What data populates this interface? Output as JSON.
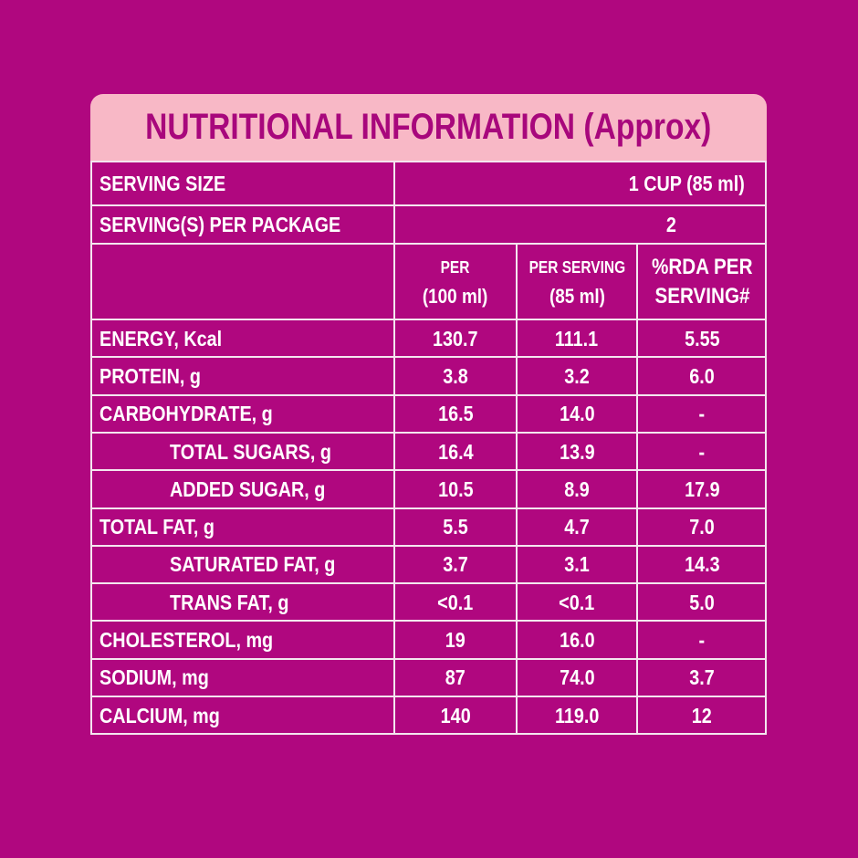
{
  "title": "NUTRITIONAL INFORMATION (Approx)",
  "serving_size": {
    "label": "SERVING SIZE",
    "value": "1 CUP (85 ml)"
  },
  "servings_per_package": {
    "label": "SERVING(S) PER PACKAGE",
    "value": "2"
  },
  "table": {
    "columns": [
      [
        "PER",
        "(100 ml)"
      ],
      [
        "PER SERVING",
        "(85 ml)"
      ],
      [
        "%RDA PER",
        "SERVING#"
      ]
    ],
    "rows": [
      [
        "ENERGY, Kcal",
        "130.7",
        "111.1",
        "5.55"
      ],
      [
        "PROTEIN, g",
        "3.8",
        "3.2",
        "6.0"
      ],
      [
        "CARBOHYDRATE, g",
        "16.5",
        "14.0",
        "-"
      ],
      [
        "TOTAL SUGARS, g",
        "16.4",
        "13.9",
        "-"
      ],
      [
        "ADDED SUGAR, g",
        "10.5",
        "8.9",
        "17.9"
      ],
      [
        "TOTAL FAT, g",
        "5.5",
        "4.7",
        "7.0"
      ],
      [
        "SATURATED FAT, g",
        "3.7",
        "3.1",
        "14.3"
      ],
      [
        "TRANS FAT, g",
        "<0.1",
        "<0.1",
        "5.0"
      ],
      [
        "CHOLESTEROL, mg",
        "19",
        "16.0",
        "-"
      ],
      [
        "SODIUM, mg",
        "87",
        "74.0",
        "3.7"
      ],
      [
        "CALCIUM, mg",
        "140",
        "119.0",
        "12"
      ]
    ]
  }
}
